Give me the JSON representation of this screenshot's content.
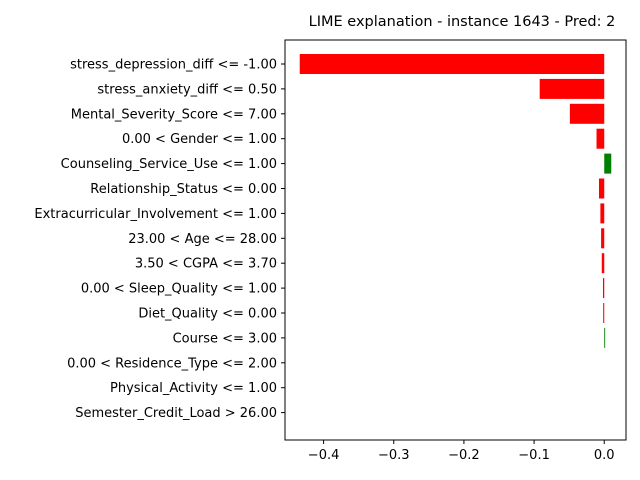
{
  "chart_data": {
    "type": "bar",
    "orientation": "horizontal",
    "title": "LIME explanation - instance 1643 - Pred: 2",
    "xlabel": "",
    "ylabel": "",
    "xlim": [
      -0.455,
      0.031
    ],
    "xticks": [
      -0.4,
      -0.3,
      -0.2,
      -0.1,
      0.0
    ],
    "xtick_labels": [
      "−0.4",
      "−0.3",
      "−0.2",
      "−0.1",
      "0.0"
    ],
    "grid": false,
    "legend": "none",
    "positive_color": "#008000",
    "negative_color": "#ff0000",
    "categories": [
      "stress_depression_diff <= -1.00",
      "stress_anxiety_diff <= 0.50",
      "Mental_Severity_Score <= 7.00",
      "0.00 < Gender <= 1.00",
      "Counseling_Service_Use <= 1.00",
      "Relationship_Status <= 0.00",
      "Extracurricular_Involvement <= 1.00",
      "23.00 < Age <= 28.00",
      "3.50 < CGPA <= 3.70",
      "0.00 < Sleep_Quality <= 1.00",
      "Diet_Quality <= 0.00",
      "Course <= 3.00",
      "0.00 < Residence_Type <= 2.00",
      "Physical_Activity <= 1.00",
      "Semester_Credit_Load > 26.00"
    ],
    "values": [
      -0.434,
      -0.092,
      -0.049,
      -0.011,
      0.01,
      -0.0075,
      -0.0055,
      -0.0045,
      -0.0035,
      -0.0018,
      -0.0015,
      0.0013,
      0.0,
      0.0,
      0.0
    ]
  }
}
